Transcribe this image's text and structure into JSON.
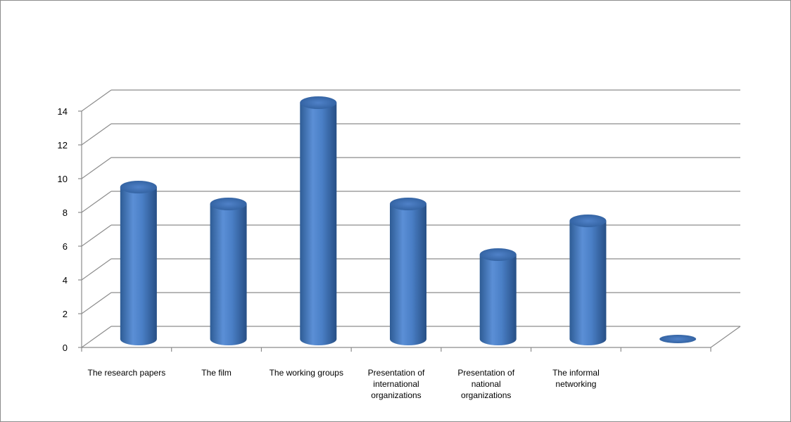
{
  "chart_data": {
    "type": "bar",
    "style": "3d-cylinder",
    "categories": [
      "The research papers",
      "The film",
      "The working groups",
      "Presentation of international organizations",
      "Presentation of national organizations",
      "The informal networking",
      ""
    ],
    "values": [
      9,
      8,
      14,
      8,
      5,
      7,
      0
    ],
    "ylim": [
      0,
      14
    ],
    "yticks": [
      0,
      2,
      4,
      6,
      8,
      10,
      12,
      14
    ],
    "title": "",
    "xlabel": "",
    "ylabel": "",
    "grid": true,
    "legend": "none",
    "bar_color": "#4f81bd"
  }
}
